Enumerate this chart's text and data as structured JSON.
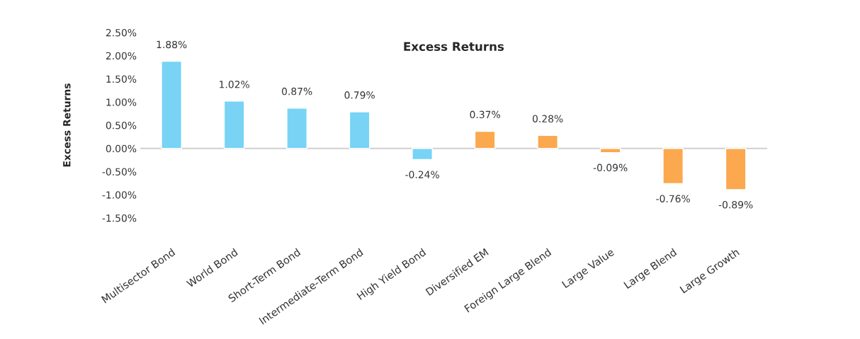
{
  "chart_data": {
    "type": "bar",
    "title": "Excess Returns",
    "ylabel": "Excess Returns",
    "categories": [
      "Multisector Bond",
      "World Bond",
      "Short-Term Bond",
      "Intermediate-Term Bond",
      "High Yield Bond",
      "Diversified EM",
      "Foreign Large Blend",
      "Large Value",
      "Large Blend",
      "Large Growth"
    ],
    "values": [
      1.88,
      1.02,
      0.87,
      0.79,
      -0.24,
      0.37,
      0.28,
      -0.09,
      -0.76,
      -0.89
    ],
    "value_labels": [
      "1.88%",
      "1.02%",
      "0.87%",
      "0.79%",
      "-0.24%",
      "0.37%",
      "0.28%",
      "-0.09%",
      "-0.76%",
      "-0.89%"
    ],
    "colors": [
      "#78d3f5",
      "#78d3f5",
      "#78d3f5",
      "#78d3f5",
      "#78d3f5",
      "#fba84f",
      "#fba84f",
      "#fba84f",
      "#fba84f",
      "#fba84f"
    ],
    "ylim": [
      -1.5,
      2.5
    ],
    "yticks": [
      {
        "value": -1.5,
        "label": "-1.50%"
      },
      {
        "value": -1.0,
        "label": "-1.00%"
      },
      {
        "value": -0.5,
        "label": "-0.50%"
      },
      {
        "value": 0,
        "label": "0.00%"
      },
      {
        "value": 0.5,
        "label": "0.50%"
      },
      {
        "value": 1.0,
        "label": "1.00%"
      },
      {
        "value": 1.5,
        "label": "1.50%"
      },
      {
        "value": 2.0,
        "label": "2.00%"
      },
      {
        "value": 2.5,
        "label": "2.50%"
      }
    ],
    "ref_lines": [
      {
        "axis": "y",
        "value": 0,
        "color": "#d0d0d0"
      }
    ],
    "legend": false
  }
}
